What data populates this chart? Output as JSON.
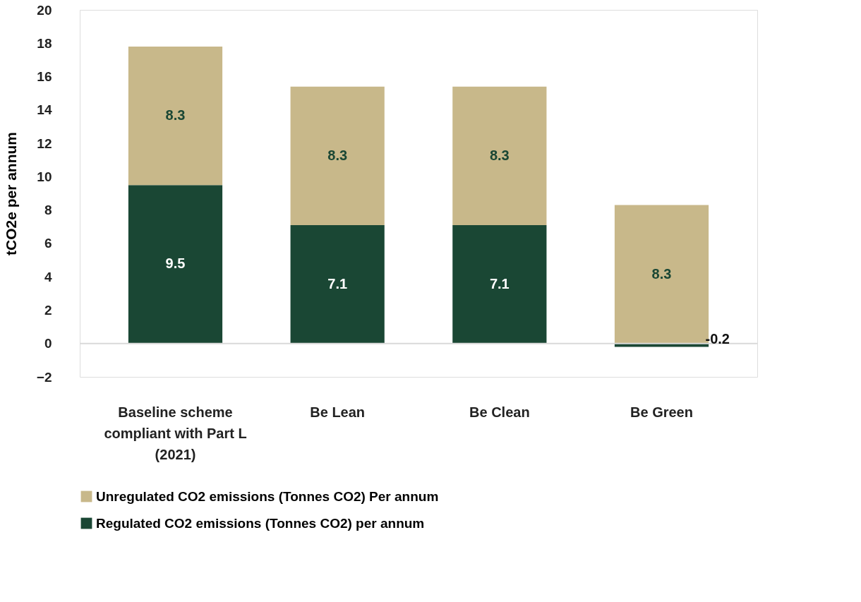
{
  "chart_data": {
    "type": "bar",
    "stacked": true,
    "ylabel": "tCO2e per annum",
    "categories": [
      "Baseline scheme compliant with Part L (2021)",
      "Be Lean",
      "Be Clean",
      "Be Green"
    ],
    "series": [
      {
        "name": "Regulated CO2 emissions (Tonnes CO2) per annum",
        "color": "#1a4734",
        "values": [
          9.5,
          7.1,
          7.1,
          -0.2
        ]
      },
      {
        "name": "Unregulated CO2 emissions (Tonnes CO2) Per annum",
        "color": "#c8b88a",
        "values": [
          8.3,
          8.3,
          8.3,
          8.3
        ]
      }
    ],
    "ylim": [
      -2,
      20
    ],
    "yticks": [
      -2,
      0,
      2,
      4,
      6,
      8,
      10,
      12,
      14,
      16,
      18,
      20
    ],
    "ref_lines": [
      {
        "axis": "y",
        "value": 0,
        "color": "#d9d9d9"
      }
    ],
    "data_labels": true,
    "grid": false,
    "legend": "bottom"
  }
}
